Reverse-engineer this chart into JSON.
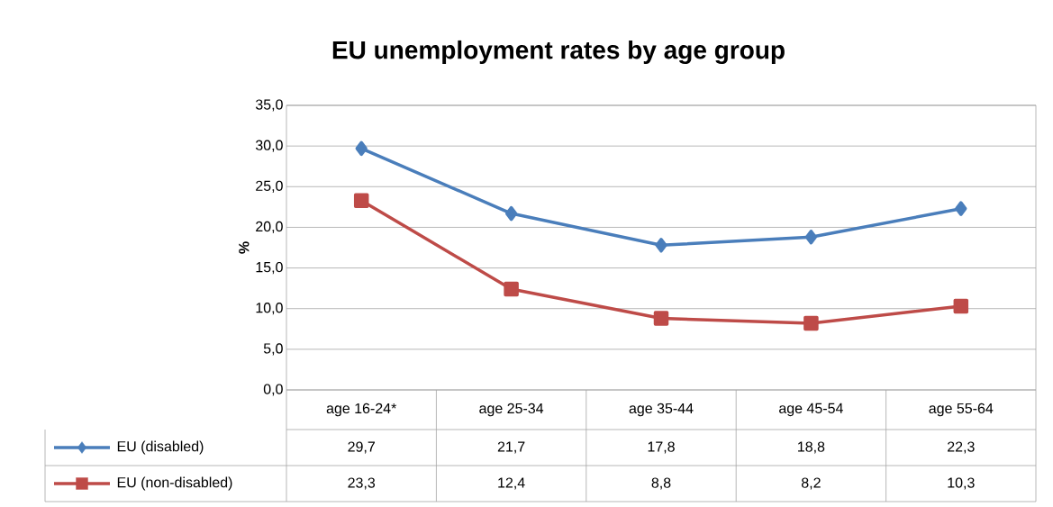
{
  "chart_data": {
    "type": "line",
    "title": "EU unemployment rates by age group",
    "ylabel": "%",
    "categories": [
      "age 16-24*",
      "age 25-34",
      "age 35-44",
      "age 45-54",
      "age 55-64"
    ],
    "series": [
      {
        "name": "EU (disabled)",
        "color": "#4a7ebb",
        "marker": "diamond",
        "values": [
          29.7,
          21.7,
          17.8,
          18.8,
          22.3
        ],
        "value_labels": [
          "29,7",
          "21,7",
          "17,8",
          "18,8",
          "22,3"
        ]
      },
      {
        "name": "EU (non-disabled)",
        "color": "#be4b48",
        "marker": "square",
        "values": [
          23.3,
          12.4,
          8.8,
          8.2,
          10.3
        ],
        "value_labels": [
          "23,3",
          "12,4",
          "8,8",
          "8,2",
          "10,3"
        ]
      }
    ],
    "ylim": [
      0,
      35
    ],
    "yticks": [
      {
        "value": 0,
        "label": "0,0"
      },
      {
        "value": 5,
        "label": "5,0"
      },
      {
        "value": 10,
        "label": "10,0"
      },
      {
        "value": 15,
        "label": "15,0"
      },
      {
        "value": 20,
        "label": "20,0"
      },
      {
        "value": 25,
        "label": "25,0"
      },
      {
        "value": 30,
        "label": "30,0"
      },
      {
        "value": 35,
        "label": "35,0"
      }
    ],
    "grid": true,
    "legend": "bottom",
    "line_style": "solid"
  }
}
